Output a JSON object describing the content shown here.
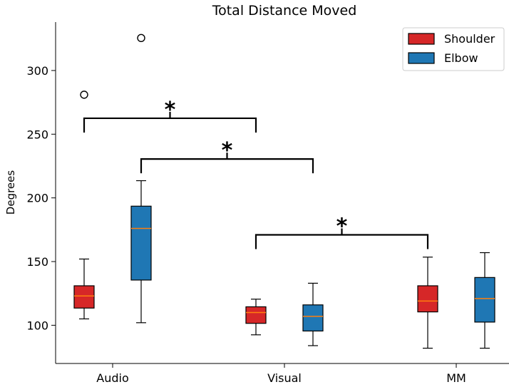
{
  "chart_data": {
    "type": "box",
    "title": "Total Distance Moved",
    "xlabel": "",
    "ylabel": "Degrees",
    "ylim": [
      70,
      338
    ],
    "yticks": [
      100,
      150,
      200,
      250,
      300
    ],
    "categories": [
      "Audio",
      "Visual",
      "MM"
    ],
    "legend": {
      "placement": "top-right"
    },
    "series": [
      {
        "name": "Shoulder",
        "color": "#d62728",
        "boxes": [
          {
            "category": "Audio",
            "whisker_low": 105,
            "q1": 113.5,
            "median": 123,
            "q3": 131,
            "whisker_high": 152,
            "outliers": [
              281
            ]
          },
          {
            "category": "Visual",
            "whisker_low": 92.5,
            "q1": 101.5,
            "median": 110,
            "q3": 114.5,
            "whisker_high": 120.5,
            "outliers": []
          },
          {
            "category": "MM",
            "whisker_low": 82,
            "q1": 110.5,
            "median": 119,
            "q3": 131,
            "whisker_high": 153.5,
            "outliers": []
          }
        ]
      },
      {
        "name": "Elbow",
        "color": "#1f77b4",
        "boxes": [
          {
            "category": "Audio",
            "whisker_low": 102,
            "q1": 135.5,
            "median": 176,
            "q3": 193.5,
            "whisker_high": 213.5,
            "outliers": [
              325.5
            ]
          },
          {
            "category": "Visual",
            "whisker_low": 84,
            "q1": 95.5,
            "median": 107,
            "q3": 116,
            "whisker_high": 133,
            "outliers": []
          },
          {
            "category": "MM",
            "whisker_low": 82,
            "q1": 102.5,
            "median": 121,
            "q3": 137.5,
            "whisker_high": 157,
            "outliers": []
          }
        ]
      }
    ],
    "significance": [
      {
        "label": "*",
        "from": "Shoulder/Audio",
        "to": "Shoulder/Visual",
        "level": 262.5
      },
      {
        "label": "*",
        "from": "Elbow/Audio",
        "to": "Elbow/Visual",
        "level": 230.5
      },
      {
        "label": "*",
        "from": "Shoulder/Visual",
        "to": "Shoulder/MM",
        "level": 171
      }
    ],
    "median_color": "#ff7f0e"
  }
}
